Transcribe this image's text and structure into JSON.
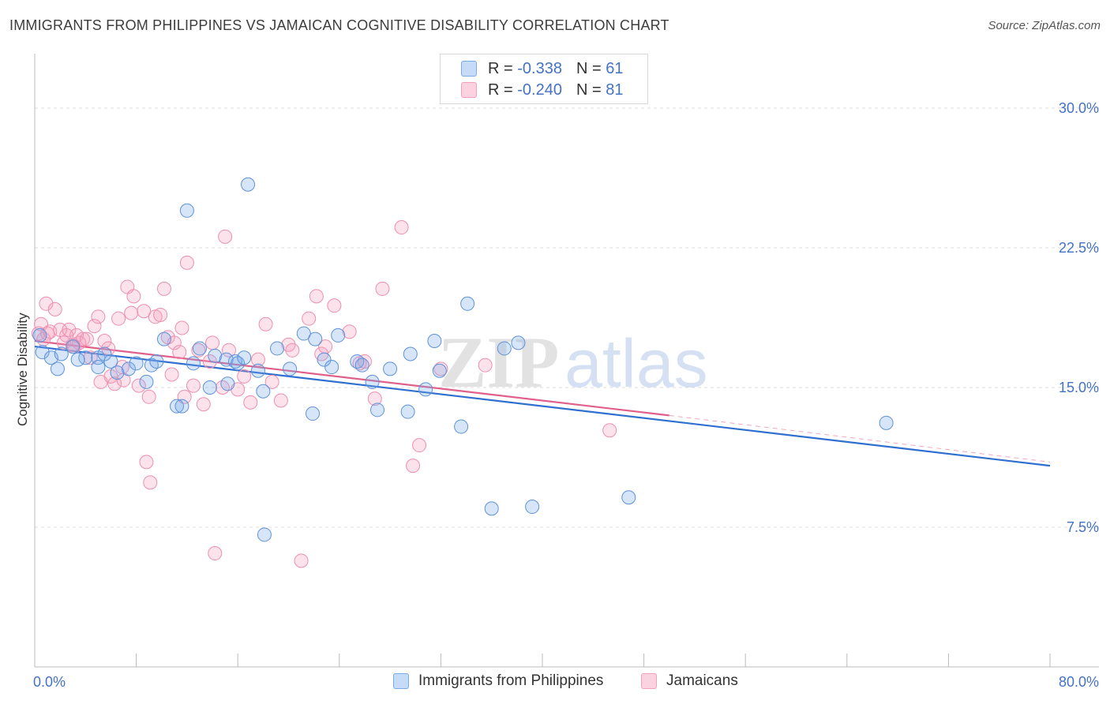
{
  "header": {
    "title": "IMMIGRANTS FROM PHILIPPINES VS JAMAICAN COGNITIVE DISABILITY CORRELATION CHART",
    "source": "Source: ZipAtlas.com"
  },
  "legend": {
    "rows": [
      {
        "r_label": "R =",
        "r_value": "-0.338",
        "n_label": "N =",
        "n_value": "61",
        "color": "#7aaae8"
      },
      {
        "r_label": "R =",
        "r_value": "-0.240",
        "n_label": "N =",
        "n_value": "81",
        "color": "#f4a0bc"
      }
    ],
    "bottom": [
      {
        "label": "Immigrants from Philippines",
        "color": "#7aaae8"
      },
      {
        "label": "Jamaicans",
        "color": "#f4a0bc"
      }
    ]
  },
  "watermark": {
    "zip": "ZIP",
    "atlas": "atlas"
  },
  "chart_data": {
    "type": "scatter",
    "ylabel": "Cognitive Disability",
    "xlim": [
      0,
      80
    ],
    "ylim": [
      0,
      32.5
    ],
    "y_ticks": [
      7.5,
      15.0,
      22.5,
      30.0
    ],
    "y_tick_labels": [
      "7.5%",
      "15.0%",
      "22.5%",
      "30.0%"
    ],
    "x_tick_labels": [
      "0.0%",
      "80.0%"
    ],
    "grid": true,
    "colors": {
      "blue": "#7aaae8",
      "blue_line": "#2f6fd0",
      "pink": "#f4a0bc",
      "pink_line": "#e0608a"
    },
    "series": [
      {
        "name": "Immigrants from Philippines",
        "color": "#7aaae8",
        "points": [
          [
            0.4,
            17.8
          ],
          [
            0.6,
            16.9
          ],
          [
            1.3,
            16.6
          ],
          [
            1.8,
            16.0
          ],
          [
            3.0,
            17.2
          ],
          [
            4.0,
            16.6
          ],
          [
            5.0,
            16.6
          ],
          [
            5.0,
            16.1
          ],
          [
            5.5,
            16.8
          ],
          [
            6.0,
            16.4
          ],
          [
            6.5,
            15.8
          ],
          [
            7.4,
            16.0
          ],
          [
            8.0,
            16.3
          ],
          [
            8.8,
            15.3
          ],
          [
            9.2,
            16.2
          ],
          [
            9.6,
            16.4
          ],
          [
            10.2,
            17.6
          ],
          [
            11.2,
            14.0
          ],
          [
            11.6,
            14.0
          ],
          [
            12.5,
            16.3
          ],
          [
            13.0,
            17.1
          ],
          [
            12.0,
            24.5
          ],
          [
            13.8,
            15.0
          ],
          [
            14.2,
            16.7
          ],
          [
            15.1,
            16.5
          ],
          [
            15.8,
            16.4
          ],
          [
            16.0,
            16.3
          ],
          [
            15.2,
            15.2
          ],
          [
            16.5,
            16.6
          ],
          [
            17.6,
            15.9
          ],
          [
            18.0,
            14.8
          ],
          [
            16.8,
            25.9
          ],
          [
            19.1,
            17.1
          ],
          [
            20.1,
            16.0
          ],
          [
            21.2,
            17.9
          ],
          [
            21.9,
            13.6
          ],
          [
            22.1,
            17.6
          ],
          [
            22.8,
            16.5
          ],
          [
            23.4,
            16.1
          ],
          [
            23.9,
            17.8
          ],
          [
            25.4,
            16.4
          ],
          [
            25.8,
            16.2
          ],
          [
            26.6,
            15.3
          ],
          [
            27.0,
            13.8
          ],
          [
            28.0,
            16.0
          ],
          [
            29.4,
            13.7
          ],
          [
            29.6,
            16.8
          ],
          [
            30.8,
            14.9
          ],
          [
            31.5,
            17.5
          ],
          [
            31.9,
            15.9
          ],
          [
            33.6,
            12.9
          ],
          [
            34.1,
            19.5
          ],
          [
            36.0,
            8.5
          ],
          [
            37.0,
            17.1
          ],
          [
            38.1,
            17.4
          ],
          [
            39.2,
            8.6
          ],
          [
            46.8,
            9.1
          ],
          [
            67.1,
            13.1
          ],
          [
            18.1,
            7.1
          ],
          [
            2.1,
            16.8
          ],
          [
            3.4,
            16.5
          ]
        ]
      },
      {
        "name": "Jamaicans",
        "color": "#f4a0bc",
        "points": [
          [
            0.3,
            17.9
          ],
          [
            0.5,
            18.4
          ],
          [
            0.7,
            17.6
          ],
          [
            0.9,
            19.5
          ],
          [
            1.0,
            17.9
          ],
          [
            1.2,
            18.0
          ],
          [
            1.6,
            19.2
          ],
          [
            2.0,
            18.1
          ],
          [
            2.3,
            17.4
          ],
          [
            2.5,
            17.8
          ],
          [
            2.7,
            18.1
          ],
          [
            3.0,
            17.3
          ],
          [
            3.3,
            17.8
          ],
          [
            3.5,
            17.4
          ],
          [
            3.8,
            17.6
          ],
          [
            4.1,
            17.6
          ],
          [
            4.4,
            16.6
          ],
          [
            4.7,
            18.3
          ],
          [
            5.0,
            18.8
          ],
          [
            5.2,
            15.3
          ],
          [
            5.5,
            17.5
          ],
          [
            5.8,
            17.1
          ],
          [
            6.0,
            15.6
          ],
          [
            6.3,
            15.2
          ],
          [
            6.6,
            18.7
          ],
          [
            7.0,
            15.4
          ],
          [
            7.3,
            20.4
          ],
          [
            7.6,
            19.0
          ],
          [
            7.8,
            19.9
          ],
          [
            8.2,
            15.1
          ],
          [
            8.6,
            19.1
          ],
          [
            8.8,
            11.0
          ],
          [
            9.0,
            14.5
          ],
          [
            9.5,
            18.8
          ],
          [
            9.9,
            18.9
          ],
          [
            10.2,
            20.3
          ],
          [
            10.5,
            17.7
          ],
          [
            10.8,
            15.7
          ],
          [
            11.0,
            17.4
          ],
          [
            11.4,
            16.9
          ],
          [
            11.6,
            18.2
          ],
          [
            11.8,
            14.5
          ],
          [
            12.0,
            21.7
          ],
          [
            12.5,
            15.1
          ],
          [
            12.9,
            17.0
          ],
          [
            13.3,
            14.1
          ],
          [
            13.8,
            16.4
          ],
          [
            14.0,
            17.4
          ],
          [
            14.2,
            6.1
          ],
          [
            14.8,
            15.0
          ],
          [
            15.0,
            23.1
          ],
          [
            15.3,
            17.0
          ],
          [
            16.0,
            14.9
          ],
          [
            16.5,
            15.6
          ],
          [
            17.0,
            14.2
          ],
          [
            17.6,
            16.5
          ],
          [
            18.2,
            18.4
          ],
          [
            18.7,
            15.3
          ],
          [
            19.4,
            14.3
          ],
          [
            20.0,
            17.3
          ],
          [
            20.3,
            17.0
          ],
          [
            21.6,
            18.7
          ],
          [
            21.0,
            5.7
          ],
          [
            22.2,
            19.9
          ],
          [
            22.6,
            16.8
          ],
          [
            22.9,
            17.2
          ],
          [
            23.6,
            19.4
          ],
          [
            24.8,
            18.0
          ],
          [
            25.6,
            16.3
          ],
          [
            26.8,
            14.4
          ],
          [
            27.4,
            20.3
          ],
          [
            28.9,
            23.6
          ],
          [
            29.8,
            10.8
          ],
          [
            30.3,
            11.9
          ],
          [
            32.0,
            16.0
          ],
          [
            35.5,
            16.2
          ],
          [
            45.3,
            12.7
          ],
          [
            9.1,
            9.9
          ],
          [
            26.0,
            16.4
          ],
          [
            3.1,
            17.2
          ],
          [
            6.9,
            16.1
          ]
        ]
      }
    ],
    "trendlines": [
      {
        "series": "Immigrants from Philippines",
        "x": [
          0,
          80
        ],
        "y": [
          17.2,
          10.8
        ],
        "style": "solid"
      },
      {
        "series": "Jamaicans",
        "x": [
          0,
          50
        ],
        "y": [
          17.5,
          13.5
        ],
        "style": "solid"
      },
      {
        "series": "Jamaicans",
        "x": [
          50,
          80
        ],
        "y": [
          13.5,
          11.0
        ],
        "style": "dashed"
      }
    ]
  }
}
